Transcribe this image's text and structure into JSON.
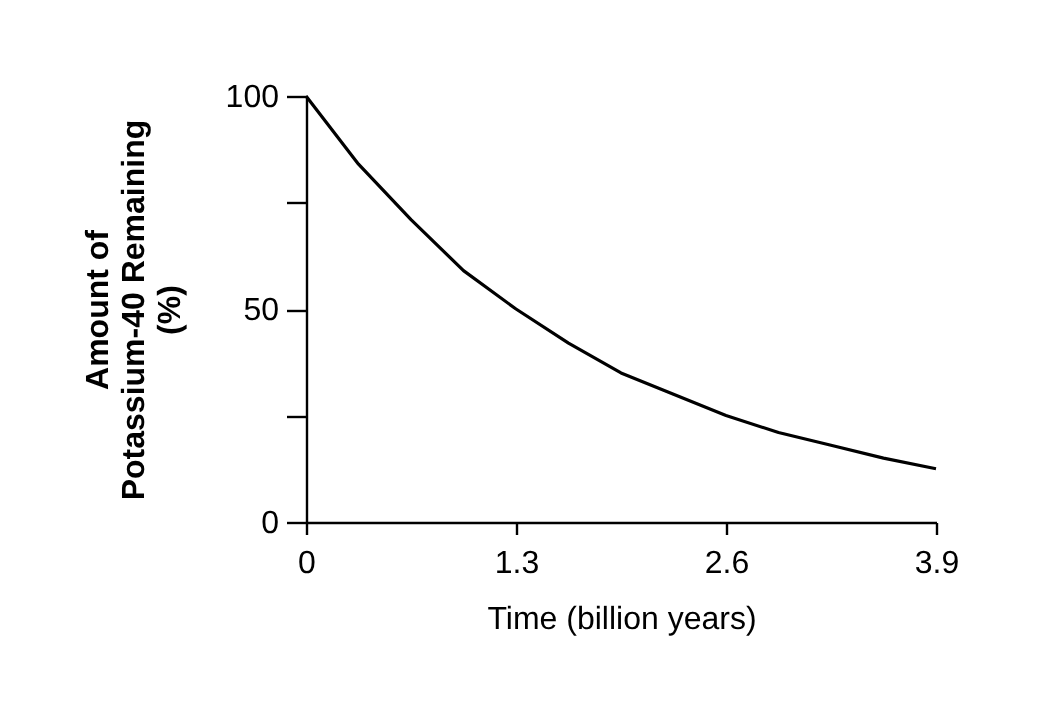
{
  "chart_data": {
    "type": "line",
    "xlabel": "Time (billion years)",
    "ylabel": "Amount of\nPotassium-40 Remaining\n(%)",
    "x": [
      0,
      0.325,
      0.65,
      0.975,
      1.3,
      1.625,
      1.95,
      2.275,
      2.6,
      2.925,
      3.25,
      3.575,
      3.9
    ],
    "series": [
      {
        "color": "#000000",
        "values": [
          100,
          84,
          71,
          59,
          50,
          42,
          35,
          30,
          25,
          21,
          18,
          15,
          12.5
        ]
      }
    ],
    "xlim": [
      0,
      3.9
    ],
    "xticks": [
      0,
      1.3,
      2.6,
      3.9
    ],
    "ylim": [
      0,
      100
    ],
    "yticks": [
      0,
      {
        "value": 25,
        "label": null
      },
      50,
      {
        "value": 75,
        "label": null
      },
      100
    ],
    "grid": false,
    "legend": false,
    "marker": "none",
    "line_style": "solid"
  }
}
